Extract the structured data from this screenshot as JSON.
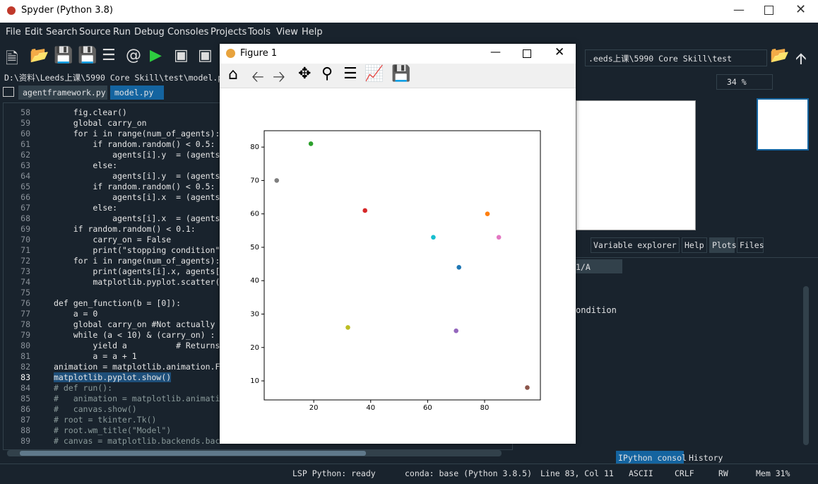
{
  "window": {
    "title": "Spyder (Python 3.8)"
  },
  "menu": [
    "File",
    "Edit",
    "Search",
    "Source",
    "Run",
    "Debug",
    "Consoles",
    "Projects",
    "Tools",
    "View",
    "Help"
  ],
  "editor": {
    "path": "D:\\资料\\Leeds上课\\5990 Core Skill\\test\\model.py",
    "tabs": [
      "agentframework.py",
      "model.py"
    ],
    "lines": [
      {
        "number": "58",
        "code": "    fig.clear()"
      },
      {
        "number": "59",
        "code": "    global carry_on"
      },
      {
        "number": "60",
        "code": "    for i in range(num_of_agents):"
      },
      {
        "number": "61",
        "code": "        if random.random() < 0.5:"
      },
      {
        "number": "62",
        "code": "            agents[i].y  = (agents"
      },
      {
        "number": "63",
        "code": "        else:"
      },
      {
        "number": "64",
        "code": "            agents[i].y  = (agents"
      },
      {
        "number": "65",
        "code": "        if random.random() < 0.5:"
      },
      {
        "number": "66",
        "code": "            agents[i].x  = (agents"
      },
      {
        "number": "67",
        "code": "        else:"
      },
      {
        "number": "68",
        "code": "            agents[i].x  = (agents"
      },
      {
        "number": "69",
        "code": "    if random.random() < 0.1:"
      },
      {
        "number": "70",
        "code": "        carry_on = False"
      },
      {
        "number": "71",
        "code": "        print(\"stopping condition\""
      },
      {
        "number": "72",
        "code": "    for i in range(num_of_agents):"
      },
      {
        "number": "73",
        "code": "        print(agents[i].x, agents["
      },
      {
        "number": "74",
        "code": "        matplotlib.pyplot.scatter("
      },
      {
        "number": "75"
      },
      {
        "number": "76",
        "code": "def gen_function(b = [0]):"
      },
      {
        "number": "77",
        "code": "    a = 0"
      },
      {
        "number": "78",
        "code": "    global carry_on #Not actually"
      },
      {
        "number": "79",
        "code": "    while (a < 10) & (carry_on) :"
      },
      {
        "number": "80",
        "code": "        yield a          # Returns"
      },
      {
        "number": "81",
        "code": "        a = a + 1"
      },
      {
        "number": "82",
        "code": "animation = matplotlib.animation.F"
      },
      {
        "number": "83",
        "code": "matplotlib.pyplot.show()"
      },
      {
        "number": "84",
        "code": "# def run():"
      },
      {
        "number": "85",
        "code": "#   animation = matplotlib.animati"
      },
      {
        "number": "86",
        "code": "#   canvas.show()"
      },
      {
        "number": "87",
        "code": "# root = tkinter.Tk()"
      },
      {
        "number": "88",
        "code": "# root.wm_title(\"Model\")"
      },
      {
        "number": "89",
        "code": "# canvas = matplotlib.backends.bac"
      }
    ]
  },
  "right_panel": {
    "working_dir": ".eeds上课\\5990 Core Skill\\test",
    "zoom": "34 %",
    "tabs": [
      "Variable explorer",
      "Help",
      "Plots",
      "Files"
    ],
    "console_tab": "1/A",
    "console_text": "ondition",
    "console_tabs": [
      "IPython console",
      "History"
    ]
  },
  "status_bar": [
    "LSP Python: ready",
    "conda: base (Python 3.8.5)",
    "Line 83, Col 11",
    "ASCII",
    "CRLF",
    "RW",
    "Mem 31%"
  ],
  "figure": {
    "title": "Figure 1"
  },
  "chart_data": {
    "type": "scatter",
    "x": [
      7,
      19,
      38,
      32,
      62,
      71,
      81,
      85,
      70,
      95
    ],
    "values": [
      70,
      81,
      61,
      26,
      53,
      44,
      60,
      53,
      25,
      8
    ],
    "colors": [
      "#7f7f7f",
      "#2ca02c",
      "#d62728",
      "#bcbd22",
      "#17becf",
      "#1f77b4",
      "#ff7f0e",
      "#e377c2",
      "#9467bd",
      "#8c564b"
    ],
    "xlim": [
      2.6,
      99.6
    ],
    "ylim": [
      4.3,
      84.9
    ],
    "xticks": [
      20,
      40,
      60,
      80
    ],
    "yticks": [
      10,
      20,
      30,
      40,
      50,
      60,
      70,
      80
    ]
  }
}
